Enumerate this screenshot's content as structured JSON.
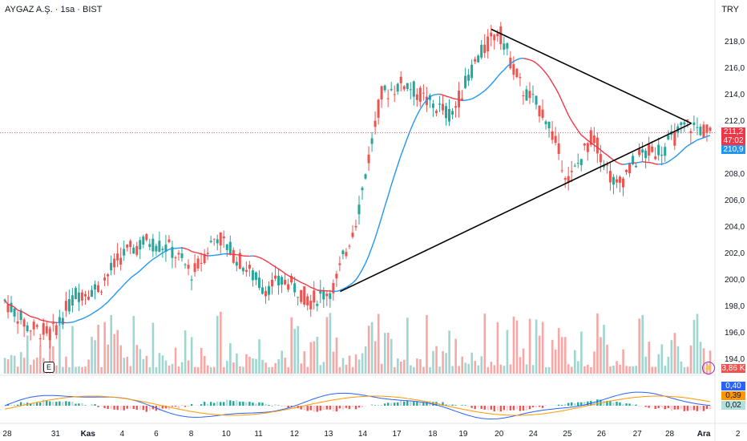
{
  "header": {
    "symbol_title": "AYGAZ A.Ş. · 1sa · BIST",
    "currency": "TRY"
  },
  "price_axis": {
    "labels": [
      "218,0",
      "216,0",
      "214,0",
      "212,0",
      "208,0",
      "206,0",
      "204,0",
      "202,0",
      "200,0",
      "198,0",
      "196,0",
      "194,0"
    ],
    "values": [
      218,
      216,
      214,
      212,
      208,
      206,
      204,
      202,
      200,
      198,
      196,
      194
    ]
  },
  "time_axis": {
    "labels": [
      "28",
      "31",
      "Kas",
      "4",
      "6",
      "8",
      "10",
      "11",
      "12",
      "13",
      "14",
      "17",
      "18",
      "19",
      "20",
      "24",
      "25",
      "26",
      "27",
      "28",
      "Ara",
      "2"
    ],
    "bold": [
      false,
      false,
      true,
      false,
      false,
      false,
      false,
      false,
      false,
      false,
      false,
      false,
      false,
      false,
      false,
      false,
      false,
      false,
      false,
      false,
      true,
      false
    ]
  },
  "tags": {
    "last_price": "211,2",
    "countdown": "47:02",
    "ma_value": "210,9",
    "volume": "3,86 K",
    "macd_line": "0,40",
    "signal_line": "0,39",
    "histogram": "0,02"
  },
  "badges": {
    "earnings": "E",
    "flash": "⚡"
  },
  "colors": {
    "up": "#26a69a",
    "down": "#ef5350",
    "ma_up": "#2196f3",
    "ma_down": "#f23645",
    "trendline": "#000000",
    "macd": "#2962ff",
    "signal": "#ff9800",
    "volume_up": "#9fd6cf",
    "volume_down": "#f7a8a6"
  },
  "chart_data": {
    "type": "candlestick",
    "ylim": [
      193,
      220
    ],
    "last_price": 211.2,
    "moving_average_last": 210.9,
    "trendline_upper": [
      [
        20.6,
        219.0
      ],
      [
        28.8,
        211.9
      ]
    ],
    "trendline_lower": [
      [
        14.2,
        199.2
      ],
      [
        28.8,
        211.9
      ]
    ],
    "price_path": [
      [
        0,
        198.5
      ],
      [
        1,
        196.5
      ],
      [
        2,
        196.0
      ],
      [
        3,
        199.0
      ],
      [
        4,
        199.5
      ],
      [
        5,
        202.0
      ],
      [
        6,
        203.0
      ],
      [
        7,
        202.5
      ],
      [
        8,
        200.5
      ],
      [
        9,
        203.5
      ],
      [
        10,
        201.5
      ],
      [
        11,
        199.5
      ],
      [
        12,
        200.0
      ],
      [
        13,
        198.5
      ],
      [
        14,
        199.5
      ],
      [
        15,
        205.0
      ],
      [
        16,
        214.0
      ],
      [
        17,
        215.0
      ],
      [
        18,
        213.5
      ],
      [
        19,
        212.5
      ],
      [
        20,
        216.5
      ],
      [
        21,
        219.0
      ],
      [
        22,
        214.5
      ],
      [
        23,
        212.5
      ],
      [
        24,
        207.5
      ],
      [
        25,
        211.0
      ],
      [
        26,
        207.0
      ],
      [
        27,
        209.5
      ],
      [
        28,
        210.0
      ],
      [
        29,
        211.8
      ],
      [
        30,
        211.2
      ]
    ]
  }
}
